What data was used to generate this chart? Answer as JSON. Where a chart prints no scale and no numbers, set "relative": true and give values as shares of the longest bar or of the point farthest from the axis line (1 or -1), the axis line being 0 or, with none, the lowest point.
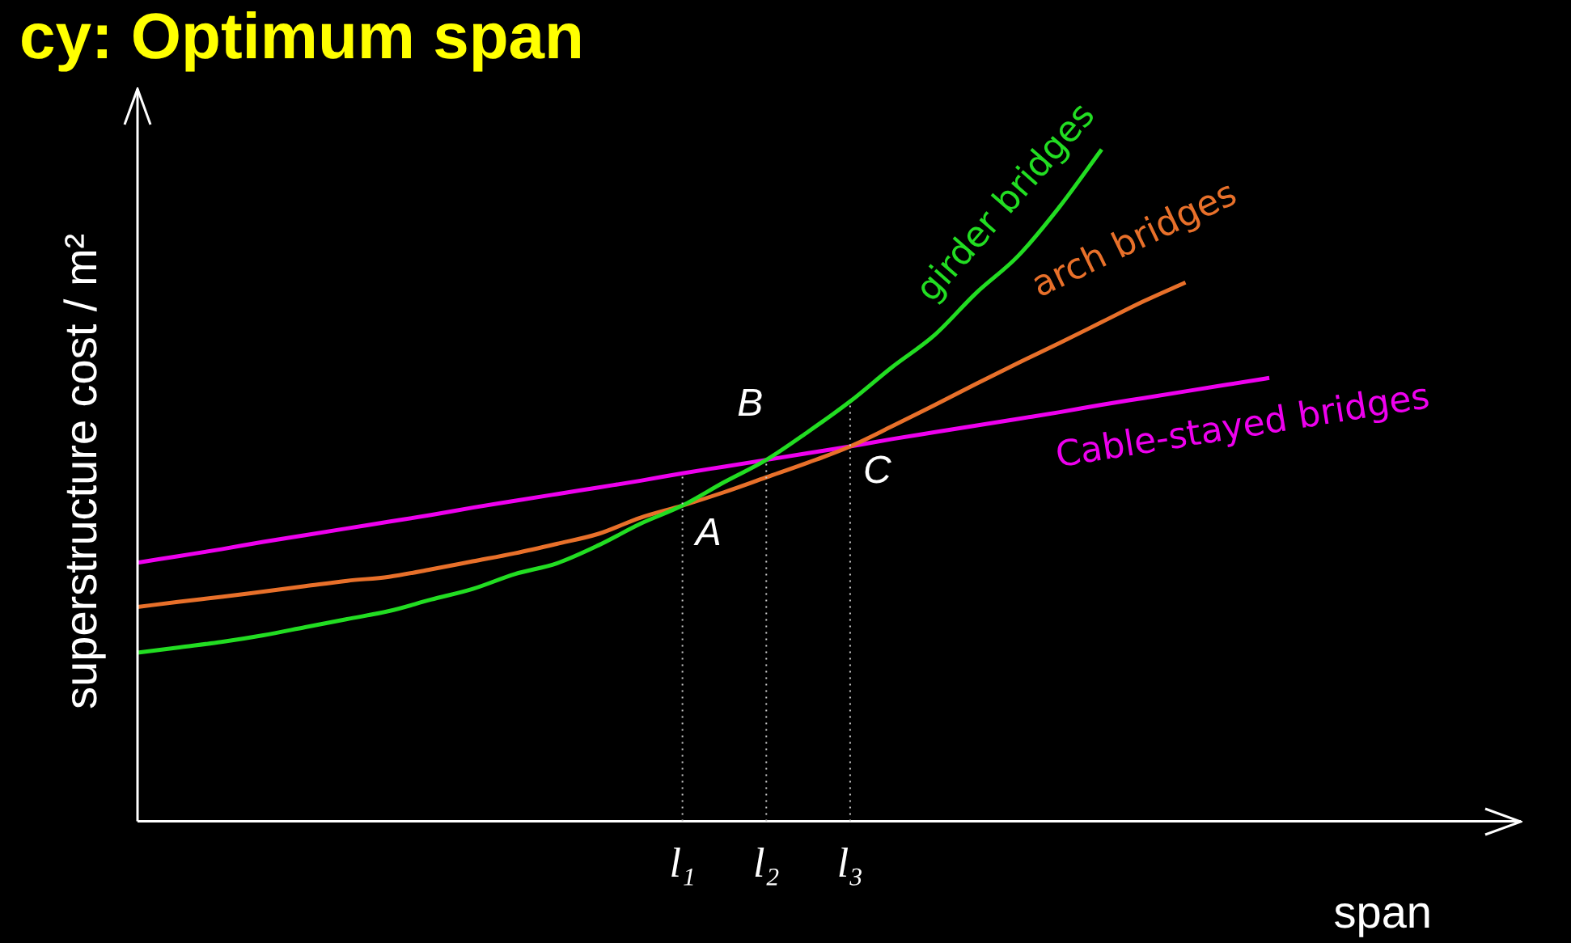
{
  "chart_data": {
    "type": "line",
    "title": "cy: Optimum span",
    "xlabel": "span",
    "ylabel": "superstructure cost / m²",
    "relative": true,
    "tick_labels": "x",
    "legend": false,
    "marker": "none",
    "categories": [
      null,
      null,
      null,
      null,
      null,
      null,
      null,
      null,
      null,
      null,
      null,
      null,
      null,
      "l₁",
      null,
      "l₂",
      null,
      "l₃",
      null,
      null,
      null,
      null,
      null,
      null,
      null,
      null,
      null,
      null,
      null,
      null,
      null,
      null,
      null,
      null
    ],
    "series": [
      {
        "name": "girder bridges",
        "color": "#22dd22",
        "values": [
          0.251,
          0.259,
          0.267,
          0.277,
          0.289,
          0.301,
          0.313,
          0.33,
          0.346,
          0.368,
          0.384,
          0.411,
          0.443,
          0.47,
          0.505,
          0.538,
          0.58,
          0.625,
          0.676,
          0.723,
          0.786,
          0.841,
          0.915,
          1.0,
          null,
          null,
          null,
          null,
          null,
          null,
          null,
          null,
          null,
          null
        ]
      },
      {
        "name": "arch bridges",
        "color": "#e8702a",
        "values": [
          0.319,
          0.327,
          0.334,
          0.342,
          0.35,
          0.358,
          0.364,
          0.375,
          0.387,
          0.399,
          0.413,
          0.428,
          0.452,
          0.47,
          0.49,
          0.512,
          0.534,
          0.558,
          0.588,
          0.619,
          0.651,
          0.682,
          0.712,
          0.743,
          0.774,
          0.802,
          null,
          null,
          null,
          null,
          null,
          null,
          null,
          null
        ]
      },
      {
        "name": "Cable-stayed bridges",
        "color": "#ee00ee",
        "values": [
          0.385,
          0.395,
          0.405,
          0.416,
          0.426,
          0.436,
          0.446,
          0.456,
          0.467,
          0.477,
          0.487,
          0.497,
          0.507,
          0.518,
          0.528,
          0.538,
          0.548,
          0.558,
          0.569,
          0.579,
          0.589,
          0.599,
          0.609,
          0.62,
          0.63,
          0.64,
          0.65,
          0.66,
          null,
          null,
          null,
          null,
          null,
          null
        ]
      }
    ],
    "ref_lines": [
      {
        "axis": "x",
        "value": "l₁",
        "color": "#cccccc",
        "line_style": "dotted"
      },
      {
        "axis": "x",
        "value": "l₂",
        "color": "#cccccc",
        "line_style": "dotted"
      },
      {
        "axis": "x",
        "value": "l₃",
        "color": "#cccccc",
        "line_style": "dotted"
      }
    ],
    "annotations": [
      {
        "text": "A",
        "x": "l₁",
        "y": 0.47
      },
      {
        "text": "B",
        "x": "l₂",
        "y": 0.538
      },
      {
        "text": "C",
        "x": "l₃",
        "y": 0.558
      }
    ]
  }
}
